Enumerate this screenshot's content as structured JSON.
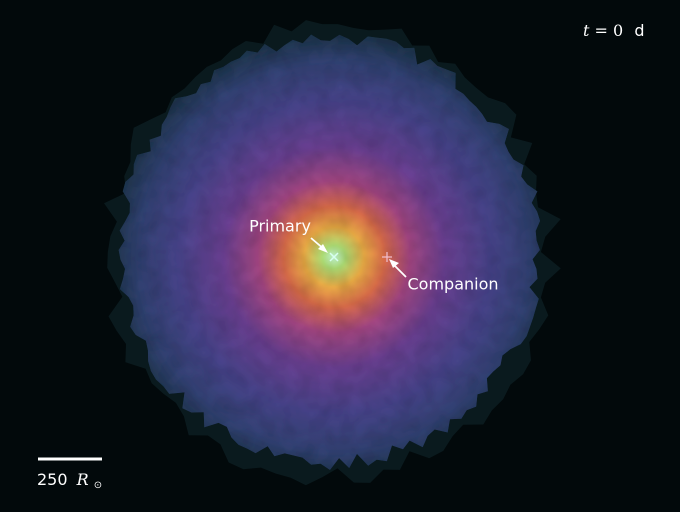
{
  "time_label": {
    "variable": "t",
    "equals": "=",
    "value": 0,
    "unit": "d"
  },
  "markers": [
    {
      "label": "Primary"
    },
    {
      "label": "Companion"
    }
  ],
  "scale_bar": {
    "value": 250,
    "unit": "R",
    "unit_subscript": "⊙"
  }
}
